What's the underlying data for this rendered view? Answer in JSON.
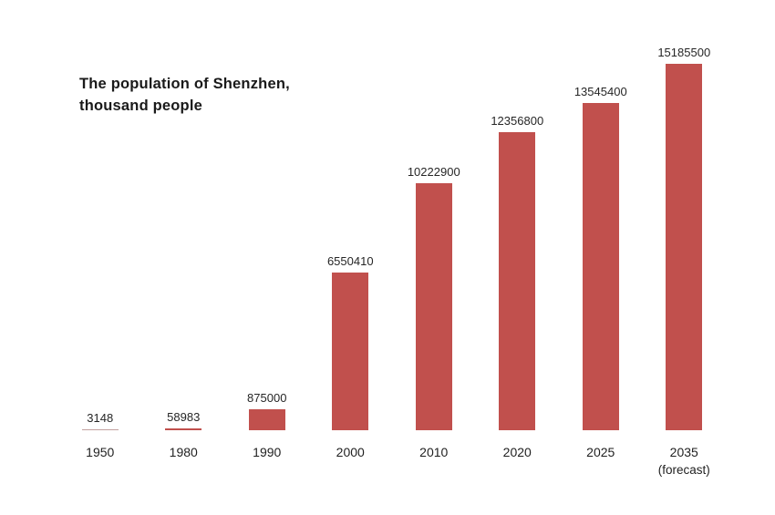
{
  "chart_data": {
    "type": "bar",
    "title": "The population of Shenzhen,\nthousand people",
    "categories": [
      "1950",
      "1980",
      "1990",
      "2000",
      "2010",
      "2020",
      "2025",
      "2035"
    ],
    "category_notes": [
      "",
      "",
      "",
      "",
      "",
      "",
      "",
      "(forecast)"
    ],
    "values": [
      3148,
      58983,
      875000,
      6550410,
      10222900,
      12356800,
      13545400,
      15185500
    ],
    "value_labels": [
      "3148",
      "58983",
      "875000",
      "6550410",
      "10222900",
      "12356800",
      "13545400",
      "15185500"
    ],
    "xlabel": "",
    "ylabel": "",
    "ylim": [
      0,
      15185500
    ],
    "grid": false,
    "legend": false,
    "axis_lines": false,
    "bar_color": "#c1504d",
    "tiny_bar_color": "#c2a09e",
    "label_color": "#262626",
    "background": "#ffffff"
  }
}
